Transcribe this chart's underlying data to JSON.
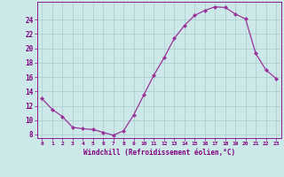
{
  "x": [
    0,
    1,
    2,
    3,
    4,
    5,
    6,
    7,
    8,
    9,
    10,
    11,
    12,
    13,
    14,
    15,
    16,
    17,
    18,
    19,
    20,
    21,
    22,
    23
  ],
  "y": [
    13.0,
    11.5,
    10.5,
    9.0,
    8.8,
    8.7,
    8.3,
    7.9,
    8.5,
    10.7,
    13.5,
    16.3,
    18.7,
    21.4,
    23.2,
    24.6,
    25.3,
    25.8,
    25.7,
    24.8,
    24.1,
    19.3,
    17.0,
    15.8
  ],
  "line_color": "#993399",
  "marker": "D",
  "marker_size": 2,
  "bg_color": "#cce8e8",
  "grid_color": "#aacccc",
  "xlabel": "Windchill (Refroidissement éolien,°C)",
  "xlim": [
    -0.5,
    23.5
  ],
  "ylim": [
    7.5,
    26.5
  ],
  "yticks": [
    8,
    10,
    12,
    14,
    16,
    18,
    20,
    22,
    24
  ],
  "xticks": [
    0,
    1,
    2,
    3,
    4,
    5,
    6,
    7,
    8,
    9,
    10,
    11,
    12,
    13,
    14,
    15,
    16,
    17,
    18,
    19,
    20,
    21,
    22,
    23
  ],
  "tick_label_color": "#800080",
  "xlabel_color": "#800080"
}
